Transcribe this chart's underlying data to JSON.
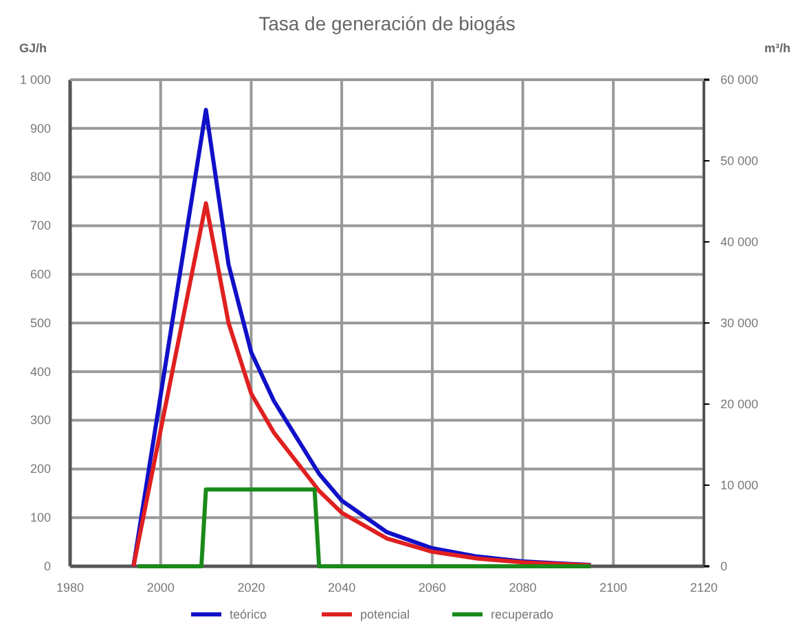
{
  "chart_data": {
    "type": "line",
    "title": "Tasa de generación de biogás",
    "ylabel": "GJ/h",
    "y2label": "m³/h",
    "xlim": [
      1980,
      2120
    ],
    "xticks": [
      1980,
      2000,
      2020,
      2040,
      2060,
      2080,
      2100,
      2120
    ],
    "ylim": [
      0,
      1000
    ],
    "yticks": [
      0,
      100,
      200,
      300,
      400,
      500,
      600,
      700,
      800,
      900,
      {
        "value": 1000,
        "label": "1 000"
      }
    ],
    "y2lim": [
      0,
      60000
    ],
    "y2ticks": [
      0,
      {
        "value": 10000,
        "label": "10 000"
      },
      {
        "value": 20000,
        "label": "20 000"
      },
      {
        "value": 30000,
        "label": "30 000"
      },
      {
        "value": 40000,
        "label": "40 000"
      },
      {
        "value": 50000,
        "label": "50 000"
      },
      {
        "value": 60000,
        "label": "60 000"
      }
    ],
    "grid": true,
    "legend": "bottom",
    "marker": "none",
    "line_style": "solid",
    "series": [
      {
        "name": "teórico",
        "color": "#1010c8",
        "x": [
          1994,
          2010,
          2015,
          2020,
          2025,
          2030,
          2035,
          2040,
          2050,
          2060,
          2070,
          2080,
          2090,
          2095
        ],
        "values": [
          0,
          938,
          620,
          440,
          340,
          265,
          190,
          135,
          70,
          37,
          20,
          10,
          5,
          3
        ]
      },
      {
        "name": "potencial",
        "color": "#e02020",
        "x": [
          1994,
          2010,
          2015,
          2020,
          2025,
          2030,
          2035,
          2040,
          2050,
          2060,
          2070,
          2080,
          2090,
          2095
        ],
        "values": [
          0,
          746,
          500,
          355,
          275,
          215,
          155,
          110,
          57,
          30,
          16,
          8,
          4,
          2
        ]
      },
      {
        "name": "recuperado",
        "color": "#1a8a1a",
        "x": [
          1995,
          2009,
          2010,
          2034,
          2035,
          2095
        ],
        "values": [
          0,
          0,
          158,
          158,
          0,
          0
        ]
      }
    ]
  }
}
